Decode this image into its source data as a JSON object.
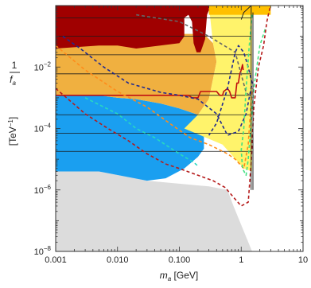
{
  "chart_data": {
    "type": "area",
    "xscale": "log",
    "yscale": "log",
    "xlim": [
      0.001,
      10
    ],
    "ylim": [
      1e-08,
      1
    ],
    "xlabel": {
      "main": "m",
      "sub": "a",
      "unit": " [GeV]"
    },
    "ylabel": {
      "numerator": "1",
      "denominator_main": "f",
      "denominator_sub": "a",
      "unit": "[TeV",
      "unit_exp": "−1",
      "unit_close": "]"
    },
    "x_ticks": [
      {
        "value": 0.001,
        "label": "0.001"
      },
      {
        "value": 0.01,
        "label": "0.010"
      },
      {
        "value": 0.1,
        "label": "0.100"
      },
      {
        "value": 1,
        "label": "1"
      },
      {
        "value": 10,
        "label": "10"
      }
    ],
    "y_ticks": [
      {
        "value": 0.01,
        "base": "10",
        "exp": "−2"
      },
      {
        "value": 0.0001,
        "base": "10",
        "exp": "−4"
      },
      {
        "value": 1e-06,
        "base": "10",
        "exp": "−6"
      },
      {
        "value": 1e-08,
        "base": "10",
        "exp": "−8"
      }
    ],
    "regions": [
      {
        "name": "gray",
        "color": "#dcdcdc",
        "points": [
          [
            0.001,
            1e-08
          ],
          [
            0.001,
            4e-06
          ],
          [
            0.005,
            4e-06
          ],
          [
            0.03,
            2e-06
          ],
          [
            0.3,
            1.3e-06
          ],
          [
            0.6,
            1e-06
          ],
          [
            0.75,
            3e-07
          ],
          [
            1.5,
            1e-08
          ]
        ]
      },
      {
        "name": "blue",
        "color": "#1a9ff0",
        "points": [
          [
            0.001,
            4e-06
          ],
          [
            0.001,
            0.0012
          ],
          [
            0.005,
            0.0012
          ],
          [
            0.01,
            0.001
          ],
          [
            0.02,
            0.0009
          ],
          [
            0.05,
            0.00065
          ],
          [
            0.1,
            0.00045
          ],
          [
            0.2,
            0.00028
          ],
          [
            0.25,
            0.00012
          ],
          [
            0.25,
            2.2e-05
          ],
          [
            0.2,
            1.2e-05
          ],
          [
            0.12,
            5e-06
          ],
          [
            0.06,
            2.4e-06
          ],
          [
            0.03,
            2e-06
          ],
          [
            0.005,
            4e-06
          ]
        ]
      },
      {
        "name": "orange",
        "color": "#f0b040",
        "points": [
          [
            0.001,
            0.0012
          ],
          [
            0.001,
            0.12
          ],
          [
            0.25,
            0.12
          ],
          [
            0.35,
            0.06
          ],
          [
            0.4,
            0.015
          ],
          [
            0.3,
            0.0009
          ],
          [
            0.2,
            0.00028
          ],
          [
            0.1,
            0.00045
          ],
          [
            0.05,
            0.00065
          ],
          [
            0.02,
            0.0009
          ],
          [
            0.01,
            0.001
          ],
          [
            0.005,
            0.0012
          ]
        ]
      },
      {
        "name": "yellow",
        "color": "#fff36b",
        "points": [
          [
            0.12,
            0.0001
          ],
          [
            0.2,
            0.00028
          ],
          [
            0.3,
            0.0009
          ],
          [
            0.4,
            0.015
          ],
          [
            0.35,
            0.06
          ],
          [
            0.3,
            1
          ],
          [
            1.5,
            1
          ],
          [
            1.5,
            4e-06
          ],
          [
            1.1,
            5e-06
          ],
          [
            0.5,
            3e-05
          ]
        ]
      },
      {
        "name": "gold",
        "color": "#ffc000",
        "points": [
          [
            0.3,
            0.5
          ],
          [
            0.3,
            1
          ],
          [
            3,
            1
          ],
          [
            3,
            0.5
          ]
        ]
      },
      {
        "name": "darkred",
        "color": "#a00000",
        "points": [
          [
            0.001,
            0.04
          ],
          [
            0.001,
            1
          ],
          [
            0.3,
            1
          ],
          [
            0.3,
            0.7
          ],
          [
            0.28,
            0.5
          ],
          [
            0.26,
            0.08
          ],
          [
            0.22,
            0.03
          ],
          [
            0.19,
            0.03
          ],
          [
            0.17,
            0.06
          ],
          [
            0.16,
            0.3
          ],
          [
            0.14,
            0.5
          ],
          [
            0.12,
            0.4
          ],
          [
            0.12,
            0.1
          ],
          [
            0.1,
            0.06
          ],
          [
            0.02,
            0.04
          ],
          [
            0.01,
            0.05
          ],
          [
            0.005,
            0.05
          ]
        ]
      }
    ],
    "curves": [
      {
        "name": "red-solid",
        "color": "#c01010",
        "dash": "",
        "width": 1.6,
        "points": [
          [
            0.001,
            0.0012
          ],
          [
            0.14,
            0.0012
          ],
          [
            0.16,
            0.001
          ],
          [
            0.2,
            0.001
          ],
          [
            0.22,
            0.0016
          ],
          [
            0.4,
            0.0016
          ],
          [
            0.45,
            0.0012
          ],
          [
            0.5,
            0.0012
          ],
          [
            0.52,
            0.0016
          ],
          [
            0.6,
            0.002
          ],
          [
            0.65,
            0.0016
          ],
          [
            0.7,
            0.001
          ],
          [
            0.8,
            0.001
          ],
          [
            0.85,
            0.003
          ],
          [
            0.9,
            0.003
          ],
          [
            0.95,
            0.006
          ],
          [
            1.0,
            0.008
          ],
          [
            1.05,
            0.012
          ],
          [
            1.08,
            0.008
          ]
        ]
      },
      {
        "name": "gray-dashed",
        "color": "#666666",
        "dash": "4,3",
        "width": 1.6,
        "points": [
          [
            0.02,
            0.5
          ],
          [
            0.1,
            0.3
          ],
          [
            0.3,
            0.1
          ],
          [
            0.8,
            0.03
          ],
          [
            1.2,
            0.0015
          ],
          [
            1.5,
            0.001
          ]
        ]
      },
      {
        "name": "navy-dashed",
        "color": "#1f2a90",
        "dash": "4,3",
        "width": 1.6,
        "points": [
          [
            0.0013,
            0.1
          ],
          [
            0.0025,
            0.04
          ],
          [
            0.006,
            0.01
          ],
          [
            0.015,
            0.003
          ],
          [
            0.05,
            0.0015
          ],
          [
            0.1,
            0.0012
          ],
          [
            0.2,
            0.0009
          ],
          [
            0.4,
            0.0003
          ],
          [
            0.6,
            6e-05
          ],
          [
            0.9,
            8e-05
          ],
          [
            1.2,
            0.0003
          ],
          [
            1.5,
            0.003
          ],
          [
            1.3,
            0.01
          ],
          [
            1.1,
            0.03
          ],
          [
            0.9,
            0.05
          ],
          [
            0.8,
            0.03
          ],
          [
            0.6,
            0.002
          ],
          [
            0.4,
            0.00015
          ],
          [
            0.3,
            6e-05
          ]
        ]
      },
      {
        "name": "orange-dashed",
        "color": "#ff8c1a",
        "dash": "4,3",
        "width": 1.6,
        "points": [
          [
            0.001,
            0.05
          ],
          [
            0.003,
            0.008
          ],
          [
            0.01,
            0.0016
          ],
          [
            0.03,
            0.0005
          ],
          [
            0.08,
            0.00012
          ],
          [
            0.15,
            5e-05
          ],
          [
            0.3,
            3e-05
          ],
          [
            0.6,
            1.5e-05
          ],
          [
            0.8,
            1e-05
          ],
          [
            1.1,
            5e-06
          ],
          [
            1.3,
            3e-05
          ],
          [
            1.4,
            0.0003
          ],
          [
            1.5,
            0.002
          ]
        ]
      },
      {
        "name": "cyan-dashed",
        "color": "#28d8c0",
        "dash": "4,3",
        "width": 1.6,
        "points": [
          [
            0.003,
            0.001
          ],
          [
            0.01,
            0.0003
          ],
          [
            0.02,
            0.0001
          ],
          [
            0.04,
            5e-05
          ],
          [
            0.08,
            2e-05
          ],
          [
            0.12,
            1.2e-05
          ],
          [
            0.17,
            8e-06
          ],
          [
            0.2,
            6e-06
          ]
        ]
      },
      {
        "name": "green-dashed",
        "color": "#40e080",
        "dash": "4,3",
        "width": 1.6,
        "points": [
          [
            1.5,
            0.5
          ],
          [
            1.35,
            0.05
          ],
          [
            1.2,
            0.002
          ],
          [
            1.1,
            0.0001
          ],
          [
            1.0,
            2e-05
          ],
          [
            1.05,
            5e-06
          ],
          [
            1.2,
            3e-06
          ],
          [
            1.3,
            1e-05
          ],
          [
            1.6,
            0.002
          ],
          [
            2.0,
            0.05
          ],
          [
            2.5,
            0.2
          ]
        ]
      },
      {
        "name": "maroon-dashed",
        "color": "#b51a1a",
        "dash": "4,3",
        "width": 1.6,
        "points": [
          [
            0.001,
            0.002
          ],
          [
            0.003,
            0.0003
          ],
          [
            0.007,
            0.0001
          ],
          [
            0.015,
            4e-05
          ],
          [
            0.03,
            1.5e-05
          ],
          [
            0.06,
            7e-06
          ],
          [
            0.1,
            5e-06
          ],
          [
            0.2,
            3e-06
          ],
          [
            0.35,
            2e-06
          ],
          [
            0.55,
            1.2e-06
          ],
          [
            0.8,
            5e-07
          ],
          [
            1.0,
            3e-07
          ],
          [
            1.3,
            4e-07
          ],
          [
            1.45,
            8e-06
          ],
          [
            1.6,
            0.0005
          ],
          [
            1.9,
            0.01
          ],
          [
            2.3,
            0.05
          ],
          [
            2.6,
            0.3
          ],
          [
            2.8,
            0.6
          ],
          [
            3,
            1
          ]
        ]
      },
      {
        "name": "black-vertical-1",
        "color": "#222222",
        "dash": "",
        "width": 1,
        "points": [
          [
            1.45,
            1
          ],
          [
            1.45,
            1e-06
          ]
        ]
      },
      {
        "name": "black-vertical-2",
        "color": "#222222",
        "dash": "",
        "width": 1,
        "points": [
          [
            1.55,
            0.6
          ],
          [
            1.55,
            1e-06
          ]
        ]
      },
      {
        "name": "black-top-curve",
        "color": "#222222",
        "dash": "",
        "width": 1,
        "points": [
          [
            1.45,
            1
          ],
          [
            1.1,
            0.6
          ],
          [
            1.0,
            0.35
          ]
        ]
      }
    ],
    "hlines": [
      {
        "y": 0.4,
        "x_range": [
          0.001,
          1.45
        ]
      },
      {
        "y": 0.1,
        "x_range": [
          0.001,
          1.45
        ]
      },
      {
        "y": 0.025,
        "x_range": [
          0.001,
          1.45
        ]
      },
      {
        "y": 0.006,
        "x_range": [
          0.001,
          1.45
        ]
      },
      {
        "y": 0.0012,
        "x_range": [
          0.001,
          1.45
        ]
      },
      {
        "y": 0.00028,
        "x_range": [
          0.001,
          1.45
        ]
      },
      {
        "y": 7e-05,
        "x_range": [
          0.001,
          1.45
        ]
      },
      {
        "y": 1.8e-05,
        "x_range": [
          0.001,
          1.45
        ]
      }
    ]
  }
}
